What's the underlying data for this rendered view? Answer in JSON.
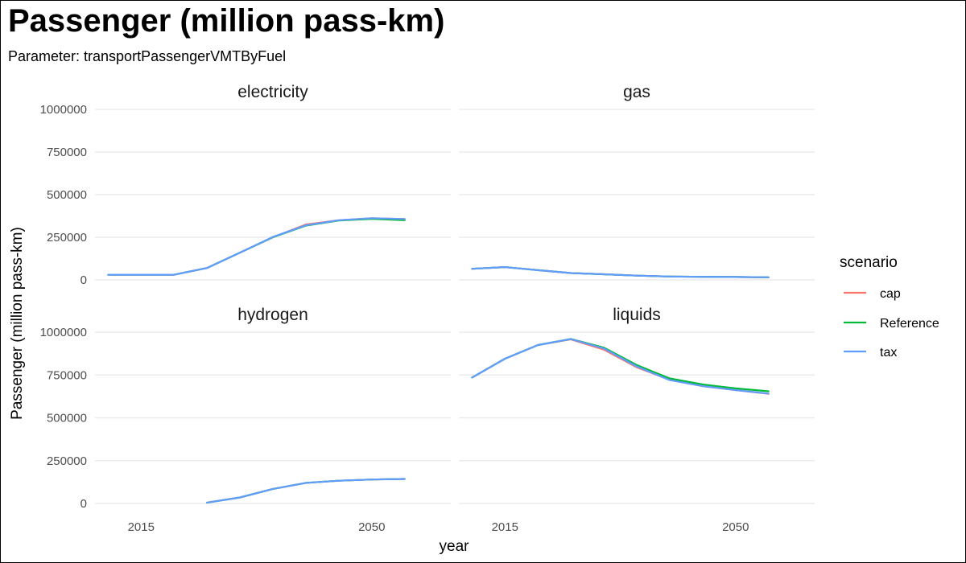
{
  "title": "Passenger (million pass-km)",
  "subtitle": "Parameter: transportPassengerVMTByFuel",
  "chart_data": {
    "type": "line",
    "xlabel": "year",
    "ylabel": "Passenger (million pass-km)",
    "ylim": [
      0,
      1000000
    ],
    "yticks": [
      0,
      250000,
      500000,
      750000,
      1000000
    ],
    "ytick_labels": [
      "0",
      "250000",
      "500000",
      "750000",
      "1000000"
    ],
    "xticks": [
      2015,
      2050
    ],
    "xtick_labels": [
      "2015",
      "2050"
    ],
    "xlim": [
      2008,
      2062
    ],
    "grid": true,
    "legend": {
      "title": "scenario",
      "position": "right",
      "entries": [
        {
          "name": "cap",
          "color": "#F8766D"
        },
        {
          "name": "Reference",
          "color": "#00BA38"
        },
        {
          "name": "tax",
          "color": "#619CFF"
        }
      ]
    },
    "panels": [
      {
        "label": "electricity",
        "series": [
          {
            "name": "cap",
            "x": [
              2010,
              2015,
              2020,
              2025,
              2030,
              2035,
              2040,
              2045,
              2050,
              2055
            ],
            "values": [
              30000,
              30000,
              30000,
              70000,
              160000,
              250000,
              325000,
              350000,
              362000,
              357000
            ]
          },
          {
            "name": "Reference",
            "x": [
              2010,
              2015,
              2020,
              2025,
              2030,
              2035,
              2040,
              2045,
              2050,
              2055
            ],
            "values": [
              30000,
              30000,
              30000,
              70000,
              160000,
              250000,
              318000,
              348000,
              358000,
              350000
            ]
          },
          {
            "name": "tax",
            "x": [
              2010,
              2015,
              2020,
              2025,
              2030,
              2035,
              2040,
              2045,
              2050,
              2055
            ],
            "values": [
              30000,
              30000,
              30000,
              70000,
              160000,
              252000,
              320000,
              350000,
              362000,
              357000
            ]
          }
        ]
      },
      {
        "label": "gas",
        "series": [
          {
            "name": "cap",
            "x": [
              2010,
              2015,
              2020,
              2025,
              2030,
              2035,
              2040,
              2045,
              2050,
              2055
            ],
            "values": [
              65000,
              75000,
              57000,
              40000,
              33000,
              25000,
              20000,
              18000,
              17000,
              15000
            ]
          },
          {
            "name": "Reference",
            "x": [
              2010,
              2015,
              2020,
              2025,
              2030,
              2035,
              2040,
              2045,
              2050,
              2055
            ],
            "values": [
              65000,
              75000,
              57000,
              40000,
              33000,
              25000,
              20000,
              18000,
              17000,
              15000
            ]
          },
          {
            "name": "tax",
            "x": [
              2010,
              2015,
              2020,
              2025,
              2030,
              2035,
              2040,
              2045,
              2050,
              2055
            ],
            "values": [
              65000,
              75000,
              57000,
              40000,
              33000,
              25000,
              20000,
              18000,
              17000,
              15000
            ]
          }
        ]
      },
      {
        "label": "hydrogen",
        "series": [
          {
            "name": "cap",
            "x": [
              2025,
              2030,
              2035,
              2040,
              2045,
              2050,
              2055
            ],
            "values": [
              5000,
              35000,
              85000,
              120000,
              133000,
              140000,
              143000
            ]
          },
          {
            "name": "Reference",
            "x": [
              2025,
              2030,
              2035,
              2040,
              2045,
              2050,
              2055
            ],
            "values": [
              5000,
              35000,
              85000,
              120000,
              133000,
              140000,
              143000
            ]
          },
          {
            "name": "tax",
            "x": [
              2025,
              2030,
              2035,
              2040,
              2045,
              2050,
              2055
            ],
            "values": [
              5000,
              35000,
              85000,
              120000,
              133000,
              140000,
              143000
            ]
          }
        ]
      },
      {
        "label": "liquids",
        "series": [
          {
            "name": "cap",
            "x": [
              2010,
              2015,
              2020,
              2025,
              2030,
              2035,
              2040,
              2045,
              2050,
              2055
            ],
            "values": [
              735000,
              845000,
              925000,
              958000,
              898000,
              795000,
              722000,
              685000,
              662000,
              640000
            ]
          },
          {
            "name": "Reference",
            "x": [
              2010,
              2015,
              2020,
              2025,
              2030,
              2035,
              2040,
              2045,
              2050,
              2055
            ],
            "values": [
              735000,
              845000,
              925000,
              960000,
              910000,
              808000,
              730000,
              695000,
              672000,
              655000
            ]
          },
          {
            "name": "tax",
            "x": [
              2010,
              2015,
              2020,
              2025,
              2030,
              2035,
              2040,
              2045,
              2050,
              2055
            ],
            "values": [
              735000,
              845000,
              925000,
              960000,
              905000,
              800000,
              720000,
              685000,
              662000,
              642000
            ]
          }
        ]
      }
    ]
  }
}
